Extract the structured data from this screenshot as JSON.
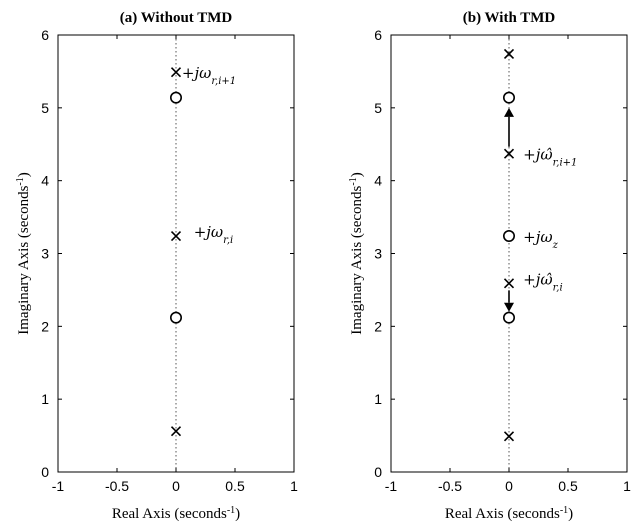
{
  "chart_data": [
    {
      "type": "scatter",
      "title": "(a) Without TMD",
      "xlabel": "Real Axis (seconds",
      "ylabel": "Imaginary Axis (seconds",
      "label_exponent": "-1",
      "xlim": [
        -1,
        1
      ],
      "ylim": [
        0,
        6
      ],
      "xticks": [
        "-1",
        "-0.5",
        "0",
        "0.5",
        "1"
      ],
      "yticks": [
        "0",
        "1",
        "2",
        "3",
        "4",
        "5",
        "6"
      ],
      "poles": [
        {
          "x": 0,
          "y": 0.56
        },
        {
          "x": 0,
          "y": 3.24
        },
        {
          "x": 0,
          "y": 5.49
        }
      ],
      "zeros": [
        {
          "x": 0,
          "y": 2.12
        },
        {
          "x": 0,
          "y": 5.14
        }
      ],
      "annotations": [
        {
          "text": "+jω",
          "subscript": "r,i+1",
          "x": 0.05,
          "y": 5.49
        },
        {
          "text": "+jω",
          "subscript": "r,i",
          "x": 0.15,
          "y": 3.31
        }
      ],
      "arrows": []
    },
    {
      "type": "scatter",
      "title": "(b) With TMD",
      "xlabel": "Real Axis (seconds",
      "ylabel": "Imaginary Axis (seconds",
      "label_exponent": "-1",
      "xlim": [
        -1,
        1
      ],
      "ylim": [
        0,
        6
      ],
      "xticks": [
        "-1",
        "-0.5",
        "0",
        "0.5",
        "1"
      ],
      "yticks": [
        "0",
        "1",
        "2",
        "3",
        "4",
        "5",
        "6"
      ],
      "poles": [
        {
          "x": 0,
          "y": 0.49
        },
        {
          "x": 0,
          "y": 2.59
        },
        {
          "x": 0,
          "y": 4.37
        },
        {
          "x": 0,
          "y": 5.74
        }
      ],
      "zeros": [
        {
          "x": 0,
          "y": 2.12
        },
        {
          "x": 0,
          "y": 3.24
        },
        {
          "x": 0,
          "y": 5.14
        }
      ],
      "annotations": [
        {
          "text": "+jω̂",
          "subscript": "r,i+1",
          "x": 0.12,
          "y": 4.37
        },
        {
          "text": "+jω",
          "subscript": "z",
          "x": 0.12,
          "y": 3.24
        },
        {
          "text": "+jω̂",
          "subscript": "r,i",
          "x": 0.12,
          "y": 2.66
        }
      ],
      "arrows": [
        {
          "from": [
            0,
            4.37
          ],
          "to": [
            0,
            5.0
          ]
        },
        {
          "from": [
            0,
            2.59
          ],
          "to": [
            0,
            2.2
          ]
        }
      ]
    }
  ]
}
